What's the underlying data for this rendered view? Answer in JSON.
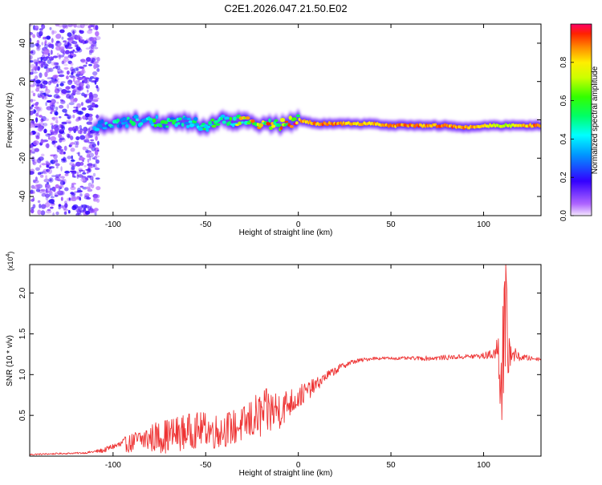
{
  "figure_title": "C2E1.2026.047.21.50.E02",
  "chart_data": [
    {
      "type": "heatmap",
      "title": "C2E1.2026.047.21.50.E02",
      "xlabel": "Height of straight line (km)",
      "ylabel": "Frequency (Hz)",
      "xlim": [
        -145,
        131
      ],
      "ylim": [
        -50,
        50
      ],
      "xticks": [
        -100,
        -50,
        0,
        50,
        100
      ],
      "yticks": [
        -40,
        -20,
        0,
        20,
        40
      ],
      "xtick_labels": [
        "-100",
        "-50",
        "0",
        "50",
        "100"
      ],
      "ytick_labels": [
        "-40",
        "-20",
        "0",
        "20",
        "40"
      ],
      "colorbar": {
        "label": "Normalized spectral amplitude",
        "range": [
          0,
          1
        ],
        "ticks": [
          0,
          0.2,
          0.4,
          0.6,
          0.8
        ],
        "tick_labels": [
          "0.0",
          "0.2",
          "0.4",
          "0.6",
          "0.8"
        ]
      },
      "ridge": {
        "x": [
          -110,
          -100,
          -90,
          -80,
          -70,
          -60,
          -50,
          -40,
          -30,
          -20,
          -10,
          0,
          10,
          20,
          30,
          40,
          50,
          60,
          70,
          80,
          90,
          100,
          110,
          131
        ],
        "frequency": [
          -3,
          -2,
          -1,
          0,
          -2,
          -1,
          -3,
          0,
          -1,
          -2,
          -3,
          0,
          -2,
          -2,
          -2,
          -2,
          -3,
          -3,
          -3,
          -3,
          -4,
          -3,
          -3,
          -3
        ],
        "amplitude": [
          0.3,
          0.4,
          0.45,
          0.5,
          0.5,
          0.45,
          0.5,
          0.55,
          0.7,
          0.75,
          0.8,
          0.85,
          0.9,
          0.9,
          0.85,
          0.85,
          0.88,
          0.9,
          0.9,
          0.9,
          0.88,
          0.85,
          0.7,
          0.95
        ]
      },
      "noise_region": {
        "x_range": [
          -145,
          -108
        ],
        "frequency_range": [
          -50,
          50
        ],
        "amplitude": 0.15
      }
    },
    {
      "type": "line",
      "xlabel": "Height of straight line (km)",
      "ylabel": "SNR (10 * v/v)",
      "y_scale_label": "(x10",
      "y_scale_exponent": "4",
      "xlim": [
        -145,
        131
      ],
      "ylim": [
        0,
        2.35
      ],
      "xticks": [
        -100,
        -50,
        0,
        50,
        100
      ],
      "yticks": [
        0.5,
        1.0,
        1.5,
        2.0
      ],
      "xtick_labels": [
        "-100",
        "-50",
        "0",
        "50",
        "100"
      ],
      "ytick_labels": [
        "0.5",
        "1.0",
        "1.5",
        "2.0"
      ],
      "color": "#ee3333",
      "series": [
        {
          "name": "SNR",
          "x": [
            -145,
            -130,
            -115,
            -105,
            -100,
            -95,
            -90,
            -85,
            -80,
            -75,
            -70,
            -65,
            -60,
            -55,
            -50,
            -45,
            -40,
            -35,
            -30,
            -25,
            -20,
            -15,
            -10,
            -5,
            0,
            5,
            10,
            15,
            20,
            25,
            30,
            40,
            50,
            60,
            70,
            80,
            90,
            100,
            105,
            108,
            110,
            112,
            114,
            118,
            125,
            131
          ],
          "y": [
            0.02,
            0.03,
            0.04,
            0.07,
            0.12,
            0.14,
            0.16,
            0.2,
            0.22,
            0.24,
            0.25,
            0.28,
            0.3,
            0.32,
            0.34,
            0.3,
            0.33,
            0.35,
            0.38,
            0.45,
            0.5,
            0.55,
            0.58,
            0.65,
            0.72,
            0.8,
            0.88,
            0.98,
            1.05,
            1.12,
            1.16,
            1.2,
            1.2,
            1.2,
            1.2,
            1.21,
            1.22,
            1.23,
            1.25,
            1.3,
            1.1,
            1.45,
            1.3,
            1.22,
            1.2,
            1.19
          ],
          "noise_amplitude": [
            0.01,
            0.01,
            0.01,
            0.03,
            0.04,
            0.08,
            0.12,
            0.16,
            0.18,
            0.2,
            0.22,
            0.22,
            0.22,
            0.22,
            0.2,
            0.22,
            0.22,
            0.22,
            0.22,
            0.28,
            0.3,
            0.3,
            0.25,
            0.18,
            0.15,
            0.12,
            0.08,
            0.06,
            0.05,
            0.04,
            0.03,
            0.02,
            0.02,
            0.02,
            0.03,
            0.03,
            0.03,
            0.04,
            0.06,
            0.25,
            1.05,
            0.95,
            0.2,
            0.06,
            0.03,
            0.02
          ]
        }
      ]
    }
  ]
}
